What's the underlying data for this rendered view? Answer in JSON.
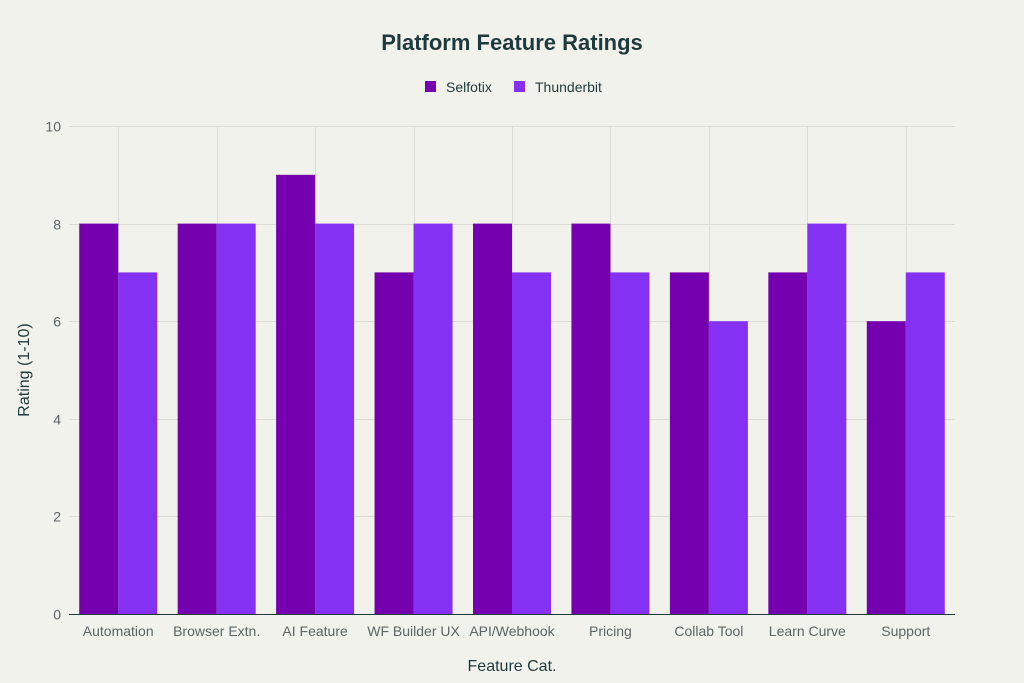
{
  "chart_data": {
    "type": "bar",
    "title": "Platform Feature Ratings",
    "xlabel": "Feature Cat.",
    "ylabel": "Rating (1-10)",
    "categories": [
      "Automation",
      "Browser Extn.",
      "AI Feature",
      "WF Builder UX",
      "API/Webhook",
      "Pricing",
      "Collab Tool",
      "Learn Curve",
      "Support"
    ],
    "series": [
      {
        "name": "Selfotix",
        "color": "#7400b0",
        "values": [
          8,
          8,
          9,
          7,
          8,
          8,
          7,
          7,
          6
        ]
      },
      {
        "name": "Thunderbit",
        "color": "#8431f3",
        "values": [
          7,
          8,
          8,
          8,
          7,
          7,
          6,
          8,
          7
        ]
      }
    ],
    "ylim": [
      0,
      10
    ],
    "yticks": [
      0,
      2,
      4,
      6,
      8,
      10
    ],
    "grid": true,
    "legend_position": "top-center"
  }
}
